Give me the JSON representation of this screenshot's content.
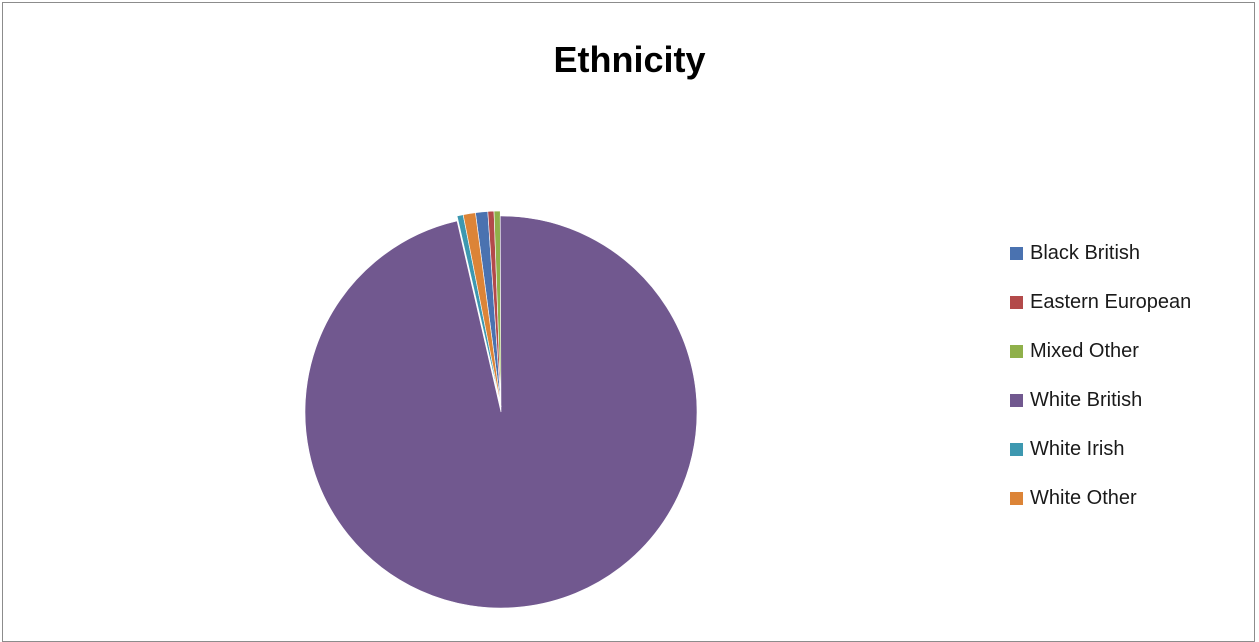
{
  "chart_data": {
    "type": "pie",
    "title": "Ethnicity",
    "categories": [
      "Black British",
      "Eastern European",
      "Mixed Other",
      "White British",
      "White Irish",
      "White Other"
    ],
    "values": [
      1,
      0.5,
      0.5,
      95.5,
      0.5,
      1
    ],
    "colors": [
      "#4a72b0",
      "#b34a4a",
      "#8fb04a",
      "#71588f",
      "#3d98b0",
      "#dc8437"
    ],
    "exploded_slice": "White British",
    "legend_position": "right"
  }
}
